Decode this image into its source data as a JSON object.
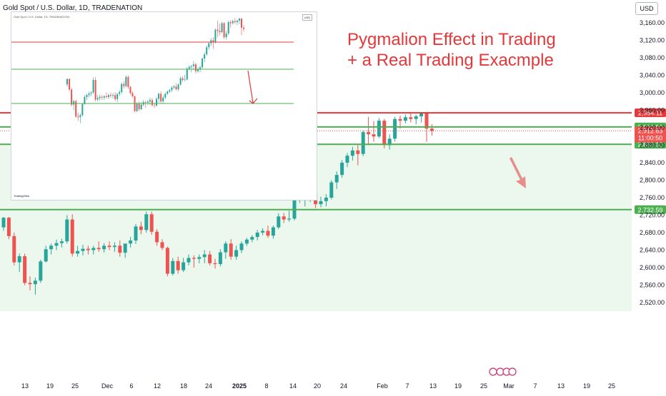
{
  "header": {
    "title": "Gold Spot / U.S. Dollar, 1D, TRADENATION",
    "currency": "USD"
  },
  "overlay": {
    "title_line1": "Pygmalion Effect in Trading",
    "title_line2": "+ a Real Trading Exacmple"
  },
  "inset": {
    "caption": "Gold Spot / U.S. Dollar, 1D, TRADENATION",
    "currency": "USD",
    "brand": "TradingView"
  },
  "colors": {
    "up": "#26a69a",
    "down": "#ef5350",
    "resistance": "#e4383b",
    "support": "#4caf50",
    "zone": "#e8f5e9",
    "arrow": "#e4383b"
  },
  "chart_data": {
    "type": "candlestick",
    "title": "Gold Spot / U.S. Dollar, 1D, TRADENATION",
    "currency": "USD",
    "y_axis": {
      "ticks": [
        2520,
        2560,
        2600,
        2640,
        2680,
        2720,
        2760,
        2800,
        2840,
        2880,
        2920,
        2960,
        3000,
        3040,
        3080,
        3120,
        3160
      ],
      "range": [
        2508,
        3180
      ]
    },
    "x_axis": {
      "tick_labels": [
        "13",
        "19",
        "25",
        "Dec",
        "6",
        "12",
        "18",
        "24",
        "2025",
        "8",
        "14",
        "20",
        "24",
        "Feb",
        "7",
        "13",
        "19",
        "25",
        "Mar",
        "7",
        "13",
        "19",
        "25"
      ]
    },
    "horizontal_levels": [
      {
        "value": 2954.11,
        "label": "2,954.11",
        "role": "resistance"
      },
      {
        "value": 2921.8,
        "label": "2,921.80",
        "role": "support"
      },
      {
        "value": 2882.12,
        "label": "2,882.12",
        "role": "support"
      },
      {
        "value": 2732.59,
        "label": "2,732.59",
        "role": "support"
      }
    ],
    "last_price": {
      "value": 2912.63,
      "label": "2,912.63",
      "countdown": "11:00:50"
    },
    "candles": [
      {
        "o": 2692,
        "h": 2716,
        "l": 2684,
        "c": 2714
      },
      {
        "o": 2714,
        "h": 2716,
        "l": 2665,
        "c": 2672
      },
      {
        "o": 2672,
        "h": 2680,
        "l": 2605,
        "c": 2612
      },
      {
        "o": 2612,
        "h": 2632,
        "l": 2590,
        "c": 2626
      },
      {
        "o": 2626,
        "h": 2632,
        "l": 2560,
        "c": 2565
      },
      {
        "o": 2565,
        "h": 2580,
        "l": 2548,
        "c": 2562
      },
      {
        "o": 2562,
        "h": 2577,
        "l": 2538,
        "c": 2570
      },
      {
        "o": 2570,
        "h": 2618,
        "l": 2565,
        "c": 2614
      },
      {
        "o": 2614,
        "h": 2650,
        "l": 2612,
        "c": 2642
      },
      {
        "o": 2642,
        "h": 2655,
        "l": 2630,
        "c": 2650
      },
      {
        "o": 2650,
        "h": 2664,
        "l": 2640,
        "c": 2656
      },
      {
        "o": 2656,
        "h": 2666,
        "l": 2646,
        "c": 2660
      },
      {
        "o": 2660,
        "h": 2720,
        "l": 2655,
        "c": 2710
      },
      {
        "o": 2710,
        "h": 2722,
        "l": 2625,
        "c": 2632
      },
      {
        "o": 2632,
        "h": 2650,
        "l": 2625,
        "c": 2638
      },
      {
        "o": 2638,
        "h": 2652,
        "l": 2628,
        "c": 2643
      },
      {
        "o": 2643,
        "h": 2650,
        "l": 2630,
        "c": 2640
      },
      {
        "o": 2640,
        "h": 2650,
        "l": 2630,
        "c": 2645
      },
      {
        "o": 2645,
        "h": 2660,
        "l": 2636,
        "c": 2642
      },
      {
        "o": 2642,
        "h": 2656,
        "l": 2634,
        "c": 2650
      },
      {
        "o": 2650,
        "h": 2660,
        "l": 2640,
        "c": 2647
      },
      {
        "o": 2647,
        "h": 2658,
        "l": 2636,
        "c": 2650
      },
      {
        "o": 2650,
        "h": 2662,
        "l": 2625,
        "c": 2634
      },
      {
        "o": 2634,
        "h": 2650,
        "l": 2622,
        "c": 2655
      },
      {
        "o": 2655,
        "h": 2670,
        "l": 2646,
        "c": 2662
      },
      {
        "o": 2662,
        "h": 2700,
        "l": 2654,
        "c": 2694
      },
      {
        "o": 2694,
        "h": 2705,
        "l": 2676,
        "c": 2686
      },
      {
        "o": 2686,
        "h": 2728,
        "l": 2680,
        "c": 2722
      },
      {
        "o": 2722,
        "h": 2728,
        "l": 2675,
        "c": 2682
      },
      {
        "o": 2682,
        "h": 2688,
        "l": 2650,
        "c": 2658
      },
      {
        "o": 2658,
        "h": 2665,
        "l": 2640,
        "c": 2645
      },
      {
        "o": 2645,
        "h": 2648,
        "l": 2580,
        "c": 2586
      },
      {
        "o": 2586,
        "h": 2622,
        "l": 2582,
        "c": 2615
      },
      {
        "o": 2615,
        "h": 2625,
        "l": 2586,
        "c": 2594
      },
      {
        "o": 2594,
        "h": 2622,
        "l": 2590,
        "c": 2612
      },
      {
        "o": 2612,
        "h": 2630,
        "l": 2605,
        "c": 2622
      },
      {
        "o": 2622,
        "h": 2628,
        "l": 2600,
        "c": 2620
      },
      {
        "o": 2620,
        "h": 2630,
        "l": 2610,
        "c": 2624
      },
      {
        "o": 2624,
        "h": 2640,
        "l": 2610,
        "c": 2630
      },
      {
        "o": 2630,
        "h": 2638,
        "l": 2605,
        "c": 2610
      },
      {
        "o": 2610,
        "h": 2620,
        "l": 2598,
        "c": 2608
      },
      {
        "o": 2608,
        "h": 2642,
        "l": 2603,
        "c": 2635
      },
      {
        "o": 2635,
        "h": 2660,
        "l": 2620,
        "c": 2655
      },
      {
        "o": 2655,
        "h": 2665,
        "l": 2618,
        "c": 2625
      },
      {
        "o": 2625,
        "h": 2650,
        "l": 2618,
        "c": 2640
      },
      {
        "o": 2640,
        "h": 2660,
        "l": 2633,
        "c": 2655
      },
      {
        "o": 2655,
        "h": 2668,
        "l": 2650,
        "c": 2664
      },
      {
        "o": 2664,
        "h": 2674,
        "l": 2658,
        "c": 2670
      },
      {
        "o": 2670,
        "h": 2686,
        "l": 2662,
        "c": 2680
      },
      {
        "o": 2680,
        "h": 2690,
        "l": 2674,
        "c": 2684
      },
      {
        "o": 2684,
        "h": 2696,
        "l": 2668,
        "c": 2673
      },
      {
        "o": 2673,
        "h": 2696,
        "l": 2666,
        "c": 2692
      },
      {
        "o": 2692,
        "h": 2724,
        "l": 2688,
        "c": 2717
      },
      {
        "o": 2717,
        "h": 2725,
        "l": 2702,
        "c": 2710
      },
      {
        "o": 2710,
        "h": 2730,
        "l": 2705,
        "c": 2712
      },
      {
        "o": 2712,
        "h": 2762,
        "l": 2708,
        "c": 2755
      },
      {
        "o": 2755,
        "h": 2768,
        "l": 2748,
        "c": 2762
      },
      {
        "o": 2762,
        "h": 2770,
        "l": 2740,
        "c": 2765
      },
      {
        "o": 2765,
        "h": 2785,
        "l": 2750,
        "c": 2772
      },
      {
        "o": 2772,
        "h": 2778,
        "l": 2736,
        "c": 2745
      },
      {
        "o": 2745,
        "h": 2762,
        "l": 2738,
        "c": 2752
      },
      {
        "o": 2752,
        "h": 2768,
        "l": 2740,
        "c": 2760
      },
      {
        "o": 2760,
        "h": 2800,
        "l": 2756,
        "c": 2795
      },
      {
        "o": 2795,
        "h": 2820,
        "l": 2780,
        "c": 2812
      },
      {
        "o": 2812,
        "h": 2846,
        "l": 2806,
        "c": 2840
      },
      {
        "o": 2840,
        "h": 2862,
        "l": 2830,
        "c": 2856
      },
      {
        "o": 2856,
        "h": 2876,
        "l": 2845,
        "c": 2868
      },
      {
        "o": 2868,
        "h": 2880,
        "l": 2834,
        "c": 2860
      },
      {
        "o": 2860,
        "h": 2914,
        "l": 2855,
        "c": 2910
      },
      {
        "o": 2910,
        "h": 2945,
        "l": 2880,
        "c": 2905
      },
      {
        "o": 2905,
        "h": 2935,
        "l": 2888,
        "c": 2900
      },
      {
        "o": 2900,
        "h": 2942,
        "l": 2896,
        "c": 2936
      },
      {
        "o": 2936,
        "h": 2940,
        "l": 2873,
        "c": 2880
      },
      {
        "o": 2880,
        "h": 2905,
        "l": 2870,
        "c": 2895
      },
      {
        "o": 2895,
        "h": 2945,
        "l": 2888,
        "c": 2940
      },
      {
        "o": 2940,
        "h": 2948,
        "l": 2918,
        "c": 2936
      },
      {
        "o": 2936,
        "h": 2950,
        "l": 2930,
        "c": 2944
      },
      {
        "o": 2944,
        "h": 2956,
        "l": 2932,
        "c": 2940
      },
      {
        "o": 2940,
        "h": 2950,
        "l": 2928,
        "c": 2946
      },
      {
        "o": 2946,
        "h": 2956,
        "l": 2932,
        "c": 2954
      },
      {
        "o": 2954,
        "h": 2956,
        "l": 2888,
        "c": 2918
      },
      {
        "o": 2918,
        "h": 2928,
        "l": 2902,
        "c": 2913
      }
    ]
  }
}
